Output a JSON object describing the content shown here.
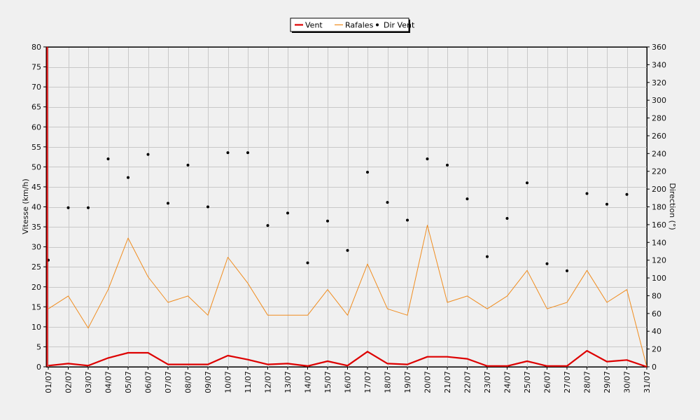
{
  "chart_data": {
    "type": "line",
    "categories": [
      "01/07",
      "02/07",
      "03/07",
      "04/07",
      "05/07",
      "06/07",
      "07/07",
      "08/07",
      "09/07",
      "10/07",
      "11/07",
      "12/07",
      "13/07",
      "14/07",
      "15/07",
      "16/07",
      "17/07",
      "18/07",
      "19/07",
      "20/07",
      "21/07",
      "22/07",
      "23/07",
      "24/07",
      "25/07",
      "26/07",
      "27/07",
      "28/07",
      "29/07",
      "30/07",
      "31/07"
    ],
    "ylabel": "Vitesse (km/h)",
    "ylim": [
      0,
      80
    ],
    "yticks": [
      0,
      5,
      10,
      15,
      20,
      25,
      30,
      35,
      40,
      45,
      50,
      55,
      60,
      65,
      70,
      75,
      80
    ],
    "y2label": "Direction (°)",
    "y2lim": [
      0,
      360
    ],
    "y2ticks": [
      0,
      20,
      40,
      60,
      80,
      100,
      120,
      140,
      160,
      180,
      200,
      220,
      240,
      260,
      280,
      300,
      320,
      340,
      360
    ],
    "grid": true,
    "legend_position": "top-center",
    "series": [
      {
        "name": "Vent",
        "color": "#dd0000",
        "axis": "left",
        "kind": "line",
        "values": [
          0.3,
          0.8,
          0.3,
          2.2,
          3.5,
          3.5,
          0.6,
          0.6,
          0.6,
          2.8,
          1.8,
          0.6,
          0.8,
          0.2,
          1.4,
          0.3,
          3.8,
          0.8,
          0.6,
          2.5,
          2.5,
          2.0,
          0.2,
          0.2,
          1.4,
          0.2,
          0.2,
          4.0,
          1.3,
          1.7,
          0.0
        ]
      },
      {
        "name": "Rafales",
        "color": "#f08c1e",
        "axis": "left",
        "kind": "line",
        "values": [
          14.5,
          17.7,
          9.7,
          19.3,
          32.2,
          22.5,
          16.1,
          17.7,
          12.9,
          27.4,
          20.9,
          12.9,
          12.9,
          12.9,
          19.3,
          12.9,
          25.7,
          14.5,
          12.9,
          35.4,
          16.1,
          17.7,
          14.5,
          17.7,
          24.1,
          14.5,
          16.1,
          24.1,
          16.1,
          19.3,
          0.0
        ]
      },
      {
        "name": "Dir Vent",
        "color": "#000000",
        "axis": "right",
        "kind": "scatter",
        "values": [
          120,
          179,
          179,
          234,
          213,
          239,
          184,
          227,
          180,
          241,
          241,
          159,
          173,
          117,
          164,
          131,
          219,
          185,
          165,
          234,
          227,
          189,
          124,
          167,
          207,
          116,
          108,
          195,
          183,
          194,
          null
        ]
      }
    ]
  }
}
